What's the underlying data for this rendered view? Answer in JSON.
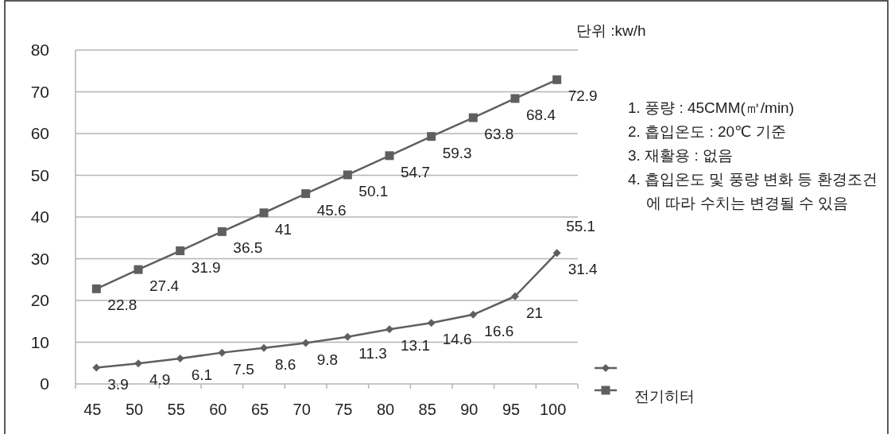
{
  "chart_data": {
    "type": "line",
    "categories": [
      "45",
      "50",
      "55",
      "60",
      "65",
      "70",
      "75",
      "80",
      "85",
      "90",
      "95",
      "100"
    ],
    "series": [
      {
        "color": "#5f5f5f",
        "marker": "diamond",
        "values": [
          3.9,
          4.9,
          6.1,
          7.5,
          8.6,
          9.8,
          11.3,
          13.1,
          14.6,
          16.6,
          21,
          31.4
        ]
      },
      {
        "name": "전기히터",
        "color": "#5f5f5f",
        "marker": "square",
        "values": [
          22.8,
          27.4,
          31.9,
          36.5,
          41,
          45.6,
          50.1,
          54.7,
          59.3,
          63.8,
          68.4,
          72.9
        ]
      }
    ],
    "ylim": [
      0,
      80
    ],
    "yticks": [
      0,
      10,
      20,
      30,
      40,
      50,
      60,
      70,
      80
    ],
    "grid": "y",
    "legend": "bottom right",
    "data_labels": true,
    "line_style": "solid",
    "annotations": [
      "단위 :kw/h",
      "1. 풍량 : 45CMM(㎥/min)",
      "2. 흡입온도 : 20℃ 기준",
      "3. 재활용 : 없음",
      "4. 흡입온도 및 풍량 변화 등 환경조건에 따라 수치는 변경될 수 있음",
      "55.1"
    ]
  }
}
